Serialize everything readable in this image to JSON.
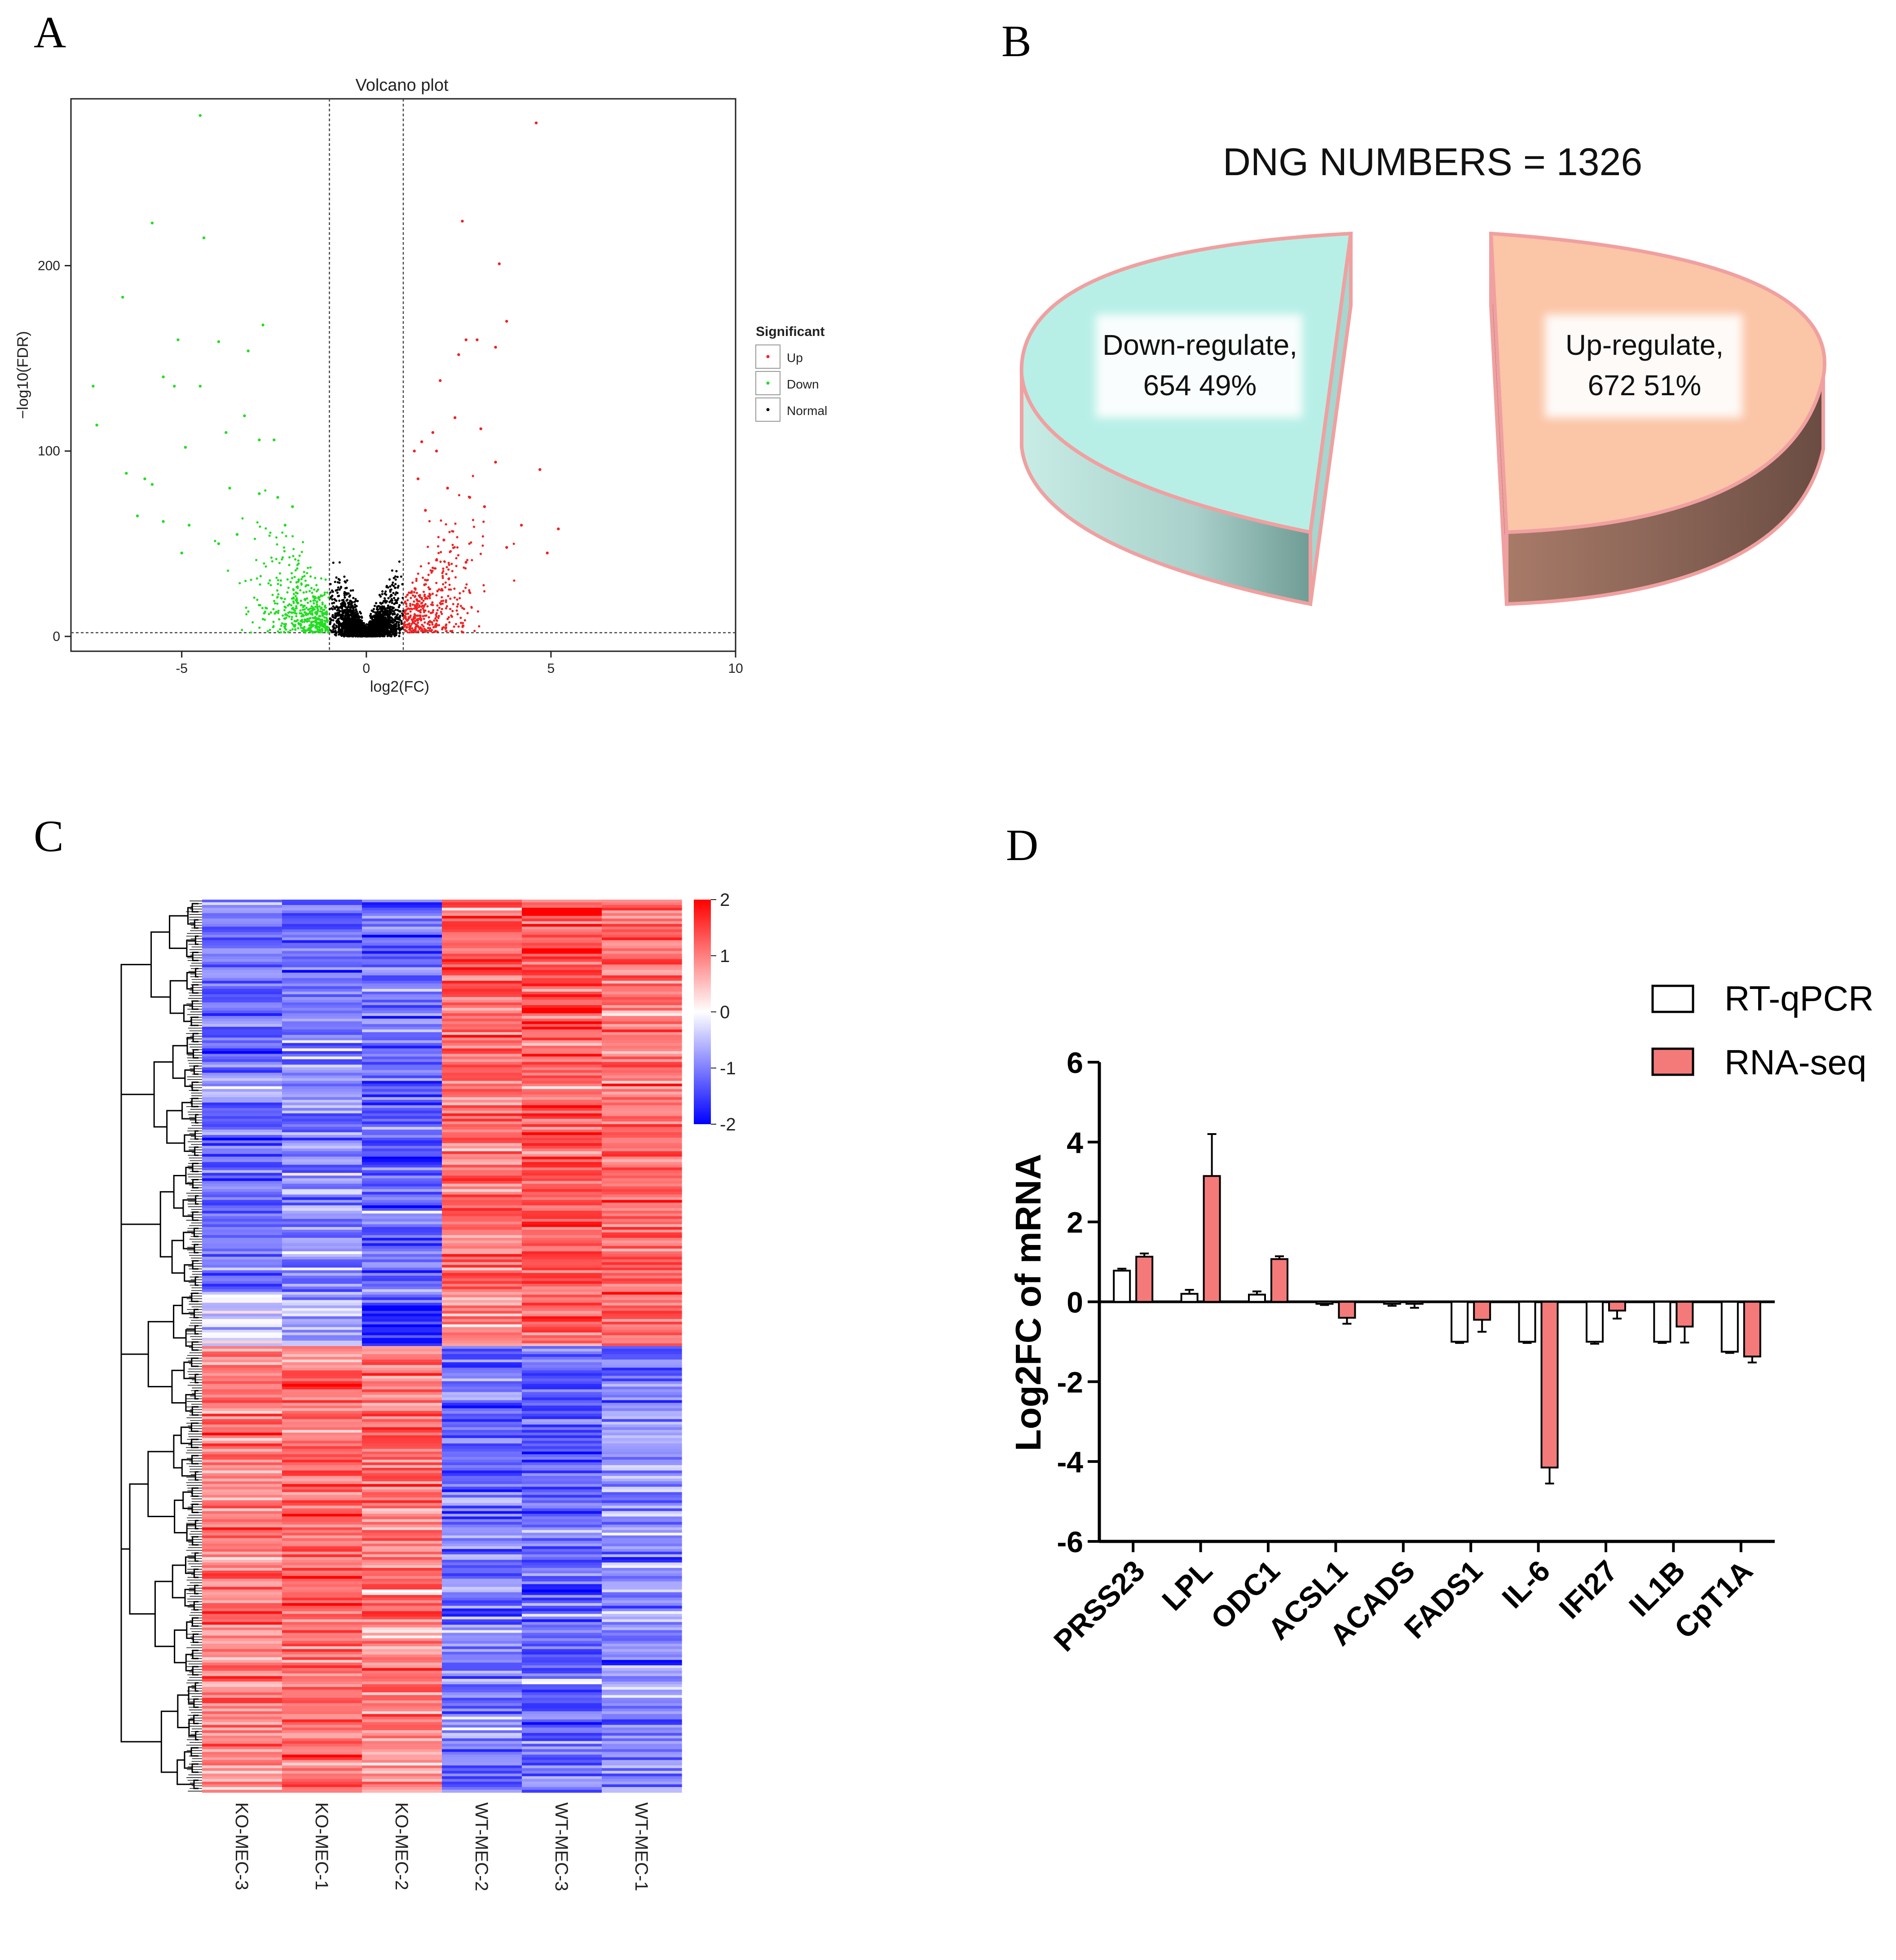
{
  "panels": {
    "a": "A",
    "b": "B",
    "c": "C",
    "d": "D"
  },
  "chart_data": [
    {
      "type": "scatter",
      "title": "Volcano plot",
      "xlabel": "log2(FC)",
      "ylabel": "−log10(FDR)",
      "xlim": [
        -8,
        10
      ],
      "ylim": [
        -8,
        290
      ],
      "xticks": [
        -5,
        0,
        5,
        10
      ],
      "yticks": [
        0,
        100,
        200
      ],
      "fc_threshold": [
        -1,
        1
      ],
      "fdr_threshold": 2,
      "legend": {
        "title": "Significant",
        "position": "right",
        "items": [
          "Up",
          "Down",
          "Normal"
        ]
      },
      "colors": {
        "Up": "#ee2222",
        "Down": "#22dd22",
        "Normal": "#000000"
      },
      "series": [
        {
          "name": "Up",
          "points": [
            [
              4.6,
              277
            ],
            [
              2.6,
              224
            ],
            [
              3.6,
              201
            ],
            [
              3.8,
              170
            ],
            [
              2.7,
              160
            ],
            [
              3.0,
              160
            ],
            [
              3.5,
              156
            ],
            [
              2.5,
              152
            ],
            [
              2.4,
              118
            ],
            [
              2.0,
              138
            ],
            [
              3.1,
              112
            ],
            [
              1.8,
              110
            ],
            [
              1.5,
              105
            ],
            [
              1.3,
              100
            ],
            [
              1.9,
              100
            ],
            [
              3.5,
              94
            ],
            [
              4.7,
              90
            ],
            [
              1.4,
              85
            ],
            [
              2.2,
              80
            ],
            [
              2.8,
              75
            ],
            [
              3.2,
              70
            ],
            [
              1.6,
              68
            ],
            [
              4.2,
              60
            ],
            [
              5.2,
              58
            ],
            [
              2.1,
              52
            ],
            [
              3.8,
              48
            ],
            [
              4.9,
              45
            ],
            [
              2.7,
              40
            ]
          ]
        },
        {
          "name": "Down",
          "points": [
            [
              -4.5,
              281
            ],
            [
              -5.8,
              223
            ],
            [
              -4.4,
              215
            ],
            [
              -6.6,
              183
            ],
            [
              -5.1,
              160
            ],
            [
              -4.0,
              159
            ],
            [
              -3.2,
              154
            ],
            [
              -2.8,
              168
            ],
            [
              -5.5,
              140
            ],
            [
              -5.2,
              135
            ],
            [
              -4.5,
              135
            ],
            [
              -7.4,
              135
            ],
            [
              -7.3,
              114
            ],
            [
              -3.3,
              119
            ],
            [
              -3.8,
              110
            ],
            [
              -4.9,
              102
            ],
            [
              -2.9,
              106
            ],
            [
              -2.5,
              106
            ],
            [
              -6.5,
              88
            ],
            [
              -6.0,
              85
            ],
            [
              -5.8,
              82
            ],
            [
              -3.7,
              80
            ],
            [
              -2.9,
              77
            ],
            [
              -2.4,
              75
            ],
            [
              -6.2,
              65
            ],
            [
              -5.5,
              62
            ],
            [
              -4.8,
              60
            ],
            [
              -3.5,
              55
            ],
            [
              -2.0,
              70
            ],
            [
              -2.2,
              60
            ],
            [
              -4.0,
              50
            ],
            [
              -5.0,
              45
            ]
          ]
        }
      ]
    },
    {
      "type": "pie",
      "title": "DNG NUMBERS  =  1326",
      "slices": [
        {
          "label": "Down-regulate,",
          "count": 654,
          "percent": "49%",
          "color": "#b7efe7"
        },
        {
          "label": "Up-regulate,",
          "count": 672,
          "percent": "51%",
          "color": "#fbc5a7"
        }
      ]
    },
    {
      "type": "heatmap",
      "columns": [
        "KO-MEC-3",
        "KO-MEC-1",
        "KO-MEC-2",
        "WT-MEC-2",
        "WT-MEC-3",
        "WT-MEC-1"
      ],
      "color_scale": {
        "min": -2,
        "max": 2,
        "ticks": [
          "2",
          "1",
          "0",
          "-1",
          "-2"
        ],
        "low": "#0000ff",
        "mid": "#ffffff",
        "high": "#ff0000"
      },
      "row_blocks": [
        {
          "fraction": 0.44,
          "values": [
            -1.1,
            -1.0,
            -1.2,
            1.2,
            1.3,
            1.1
          ]
        },
        {
          "fraction": 0.06,
          "values": [
            -0.3,
            -0.6,
            -1.6,
            1.0,
            1.1,
            1.0
          ]
        },
        {
          "fraction": 0.5,
          "values": [
            1.0,
            1.2,
            1.0,
            -1.1,
            -1.2,
            -0.9
          ]
        }
      ]
    },
    {
      "type": "bar",
      "ylabel": "Log2FC of mRNA",
      "ylim": [
        -6,
        6
      ],
      "yticks": [
        6,
        4,
        2,
        0,
        -2,
        -4,
        -6
      ],
      "categories": [
        "PRSS23",
        "LPL",
        "ODC1",
        "ACSL1",
        "ACADS",
        "FADS1",
        "IL-6",
        "IFI27",
        "IL1B",
        "CpT1A"
      ],
      "series": [
        {
          "name": "RT-qPCR",
          "color": "#ffffff",
          "values": [
            0.78,
            0.2,
            0.18,
            -0.05,
            -0.05,
            -1.0,
            -1.0,
            -1.0,
            -1.0,
            -1.25
          ],
          "errors": [
            0.05,
            0.1,
            0.08,
            0.03,
            0.05,
            0.03,
            0.03,
            0.05,
            0.03,
            0.03
          ]
        },
        {
          "name": "RNA-seq",
          "color": "#f47a7a",
          "values": [
            1.13,
            3.15,
            1.07,
            -0.4,
            -0.05,
            -0.45,
            -4.15,
            -0.22,
            -0.62,
            -1.37
          ],
          "errors": [
            0.08,
            1.05,
            0.07,
            0.15,
            0.1,
            0.3,
            0.4,
            0.2,
            0.4,
            0.15
          ]
        }
      ]
    }
  ]
}
